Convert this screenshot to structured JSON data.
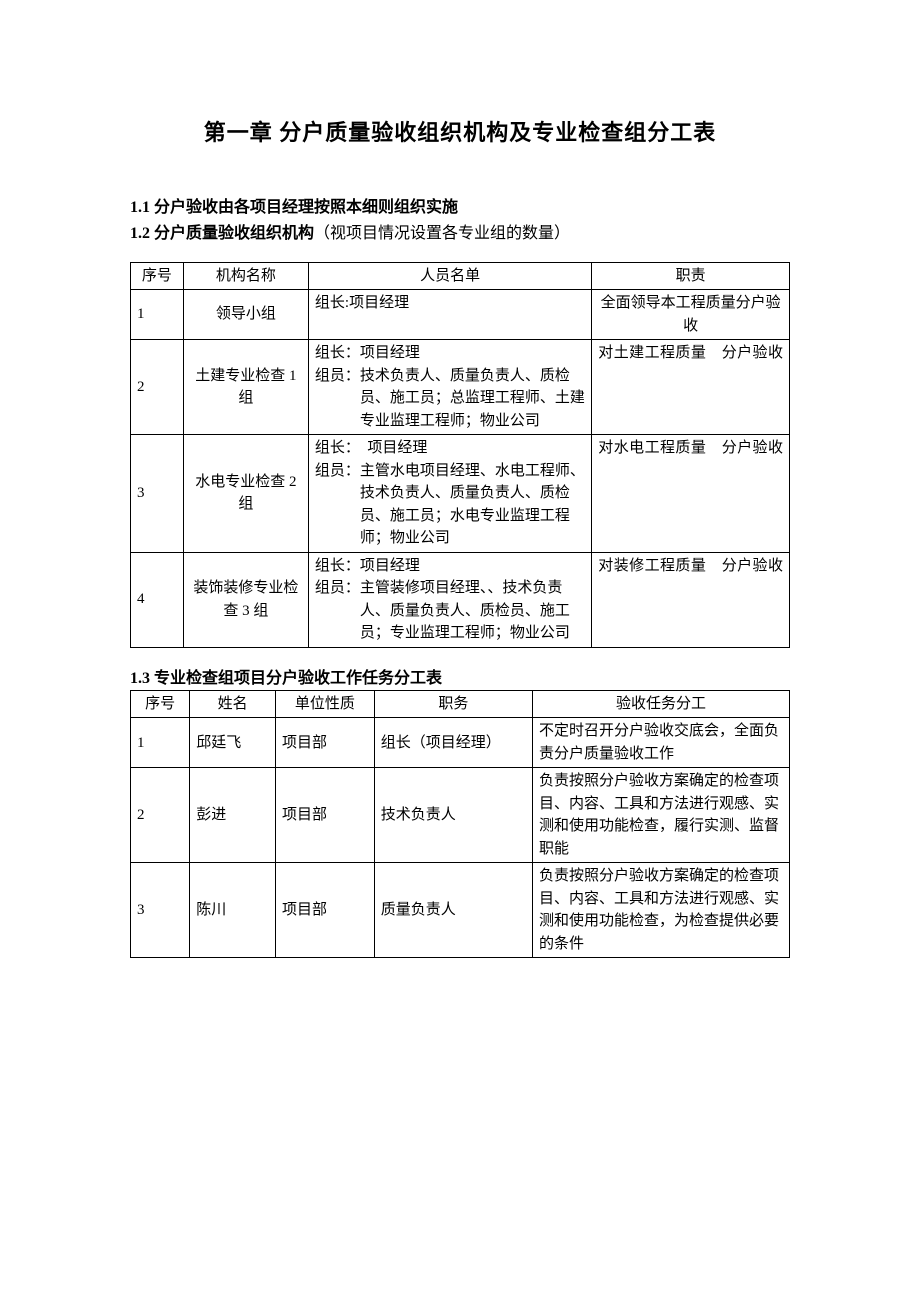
{
  "document": {
    "chapter_title": "第一章 分户质量验收组织机构及专业检查组分工表",
    "section_1_1": "1.1 分户验收由各项目经理按照本细则组织实施",
    "section_1_2_bold": "1.2 分户质量验收组织机构",
    "section_1_2_note": "（视项目情况设置各专业组的数量）",
    "section_1_3": "1.3 专业检查组项目分户验收工作任务分工表",
    "background_color": "#ffffff",
    "text_color": "#000000",
    "border_color": "#000000",
    "title_fontsize": 22,
    "body_fontsize": 16,
    "table_fontsize": 15
  },
  "table1": {
    "headers": [
      "序号",
      "机构名称",
      "人员名单",
      "职责"
    ],
    "rows": [
      {
        "seq": "1",
        "org": "领导小组",
        "personnel": "组长:项目经理",
        "duty": "全面领导本工程质量分户验收"
      },
      {
        "seq": "2",
        "org": "土建专业检查 1 组",
        "personnel_leader": "组长：项目经理",
        "personnel_members": "组员：技术负责人、质量负责人、质检员、施工员；总监理工程师、土建专业监理工程师；物业公司",
        "duty": "对土建工程质量　分户验收"
      },
      {
        "seq": "3",
        "org": "水电专业检查 2 组",
        "personnel_leader": "组长：　项目经理",
        "personnel_members": "组员：主管水电项目经理、水电工程师、技术负责人、质量负责人、质检员、施工员；水电专业监理工程师；物业公司",
        "duty": "对水电工程质量　分户验收"
      },
      {
        "seq": "4",
        "org": "装饰装修专业检查 3 组",
        "personnel_leader": "组长：项目经理",
        "personnel_members": "组员：主管装修项目经理、、技术负责人、质量负责人、质检员、施工员；专业监理工程师；物业公司",
        "duty": "对装修工程质量　分户验收"
      }
    ]
  },
  "table2": {
    "headers": [
      "序号",
      "姓名",
      "单位性质",
      "职务",
      "验收任务分工"
    ],
    "rows": [
      {
        "seq": "1",
        "name": "邱廷飞",
        "unit": "项目部",
        "position": "组长（项目经理）",
        "task": "不定时召开分户验收交底会，全面负责分户质量验收工作"
      },
      {
        "seq": "2",
        "name": "彭进",
        "unit": "项目部",
        "position": "技术负责人",
        "task": "负责按照分户验收方案确定的检查项目、内容、工具和方法进行观感、实测和使用功能检查，履行实测、监督职能"
      },
      {
        "seq": "3",
        "name": "陈川",
        "unit": "项目部",
        "position": "质量负责人",
        "task": "负责按照分户验收方案确定的检查项目、内容、工具和方法进行观感、实测和使用功能检查，为检查提供必要的条件"
      }
    ]
  }
}
